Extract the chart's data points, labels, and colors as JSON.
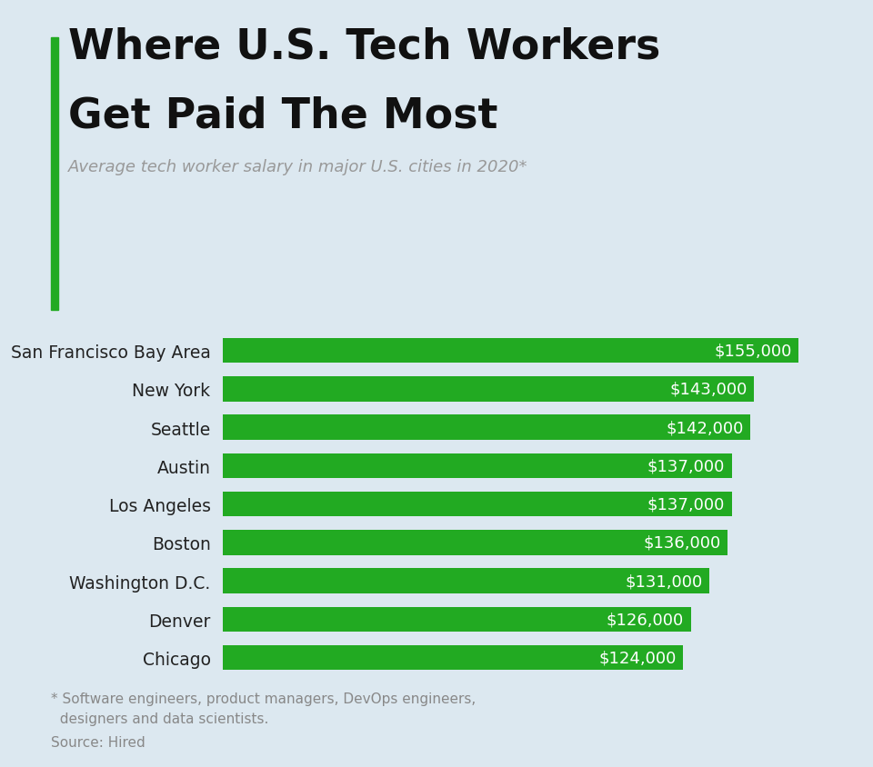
{
  "title_line1": "Where U.S. Tech Workers",
  "title_line2": "Get Paid The Most",
  "subtitle": "Average tech worker salary in major U.S. cities in 2020*",
  "categories": [
    "San Francisco Bay Area",
    "New York",
    "Seattle",
    "Austin",
    "Los Angeles",
    "Boston",
    "Washington D.C.",
    "Denver",
    "Chicago"
  ],
  "values": [
    155000,
    143000,
    142000,
    137000,
    137000,
    136000,
    131000,
    126000,
    124000
  ],
  "labels": [
    "$155,000",
    "$143,000",
    "$142,000",
    "$137,000",
    "$137,000",
    "$136,000",
    "$131,000",
    "$126,000",
    "$124,000"
  ],
  "bar_color": "#22aa22",
  "bar_label_color": "#ffffff",
  "background_color": "#dce8f0",
  "title_color": "#111111",
  "subtitle_color": "#999999",
  "accent_color": "#22aa22",
  "footnote_line1": "* Software engineers, product managers, DevOps engineers,",
  "footnote_line2": "  designers and data scientists.",
  "footnote_line3": "Source: Hired",
  "footnote_color": "#888888",
  "xlim": [
    0,
    168000
  ]
}
